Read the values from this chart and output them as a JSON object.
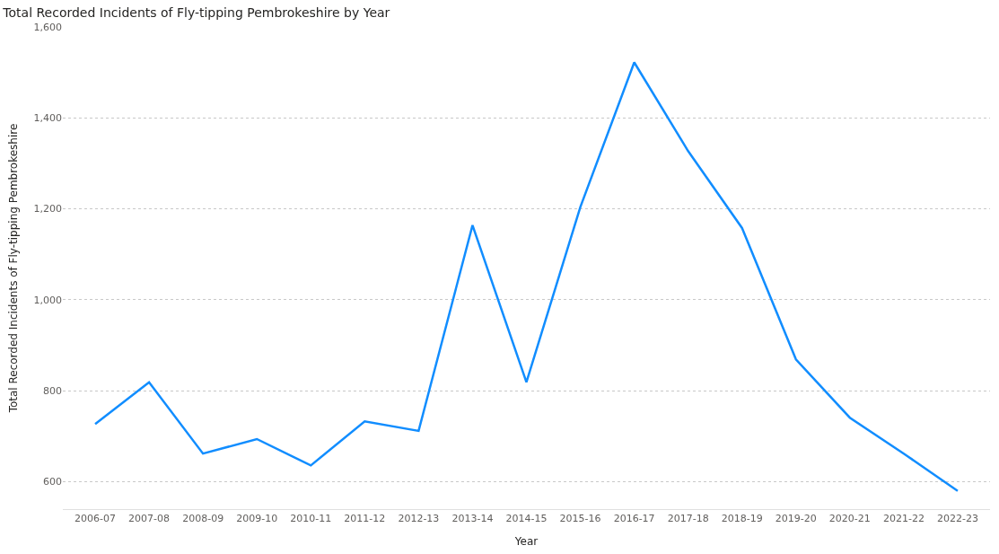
{
  "chart_data": {
    "type": "line",
    "title": "Total Recorded Incidents of Fly-tipping Pembrokeshire by Year",
    "xlabel": "Year",
    "ylabel": "Total Recorded Incidents of Fly-tipping Pembrokeshire",
    "categories": [
      "2006-07",
      "2007-08",
      "2008-09",
      "2009-10",
      "2010-11",
      "2011-12",
      "2012-13",
      "2013-14",
      "2014-15",
      "2015-16",
      "2016-17",
      "2017-18",
      "2018-19",
      "2019-20",
      "2020-21",
      "2021-22",
      "2022-23"
    ],
    "series": [
      {
        "color": "#118dff",
        "values": [
          727,
          819,
          662,
          694,
          636,
          733,
          712,
          1164,
          819,
          1204,
          1522,
          1327,
          1158,
          869,
          741,
          662,
          580
        ]
      }
    ],
    "ylim": [
      540,
      1600
    ],
    "yticks": [
      600,
      800,
      {
        "value": 1000,
        "label": "1,000"
      },
      {
        "value": 1200,
        "label": "1,200"
      },
      {
        "value": 1400,
        "label": "1,400"
      },
      {
        "value": 1600,
        "label": "1,600"
      }
    ],
    "grid": "y",
    "line_style": "solid",
    "marker": "none"
  }
}
